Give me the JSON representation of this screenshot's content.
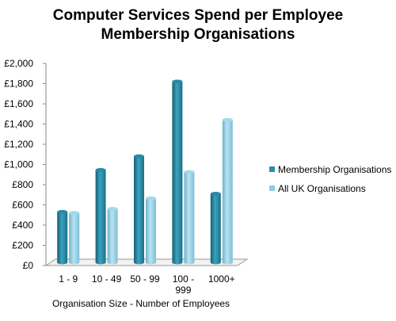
{
  "chart_data": {
    "type": "bar",
    "title": "Computer Services Spend per Employee",
    "subtitle": "Membership Organisations",
    "xlabel": "Organisation Size - Number of Employees",
    "ylabel": "",
    "categories": [
      "1 - 9",
      "10 - 49",
      "50 - 99",
      "100 - 999",
      "1000+"
    ],
    "category_lines": [
      [
        "1 - 9"
      ],
      [
        "10 - 49"
      ],
      [
        "50 - 99"
      ],
      [
        "100 -",
        "999"
      ],
      [
        "1000+"
      ]
    ],
    "series": [
      {
        "name": "Membership Organisations",
        "values": [
          530,
          945,
          1080,
          1820,
          710
        ],
        "color": "#2E8CA6"
      },
      {
        "name": "All UK Organisations",
        "values": [
          520,
          560,
          665,
          925,
          1440
        ],
        "color": "#8ECDE2"
      }
    ],
    "ylim": [
      0,
      2000
    ],
    "yticks": [
      0,
      200,
      400,
      600,
      800,
      1000,
      1200,
      1400,
      1600,
      1800,
      2000
    ],
    "ytick_labels": [
      "£0",
      "£200",
      "£400",
      "£600",
      "£800",
      "£1,000",
      "£1,200",
      "£1,400",
      "£1,600",
      "£1,800",
      "£2,000"
    ],
    "grid": false,
    "legend": "right",
    "style": "3d-cylinder"
  }
}
